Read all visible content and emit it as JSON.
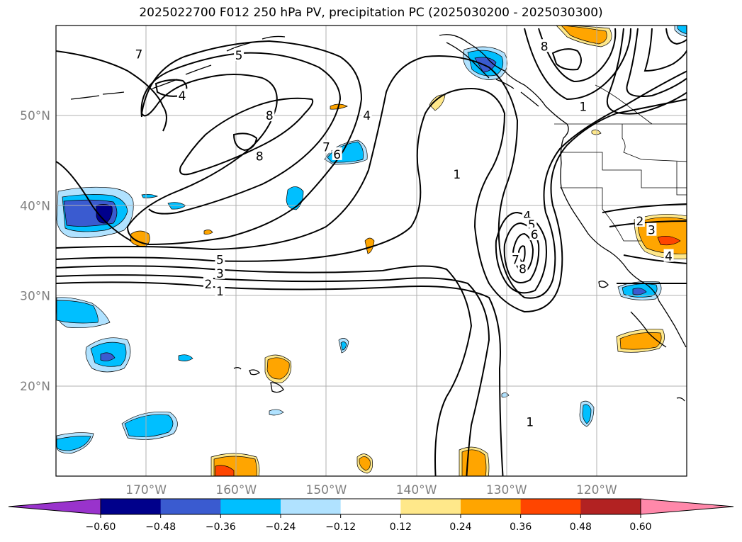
{
  "title": "2025022700 F012 250 hPa PV, precipitation PC (2025030200 - 2025030300)",
  "map": {
    "lon_range": [
      -180,
      -110
    ],
    "lat_range": [
      10,
      60
    ],
    "lat_ticks": [
      {
        "value": 50,
        "label": "50°N"
      },
      {
        "value": 40,
        "label": "40°N"
      },
      {
        "value": 30,
        "label": "30°N"
      },
      {
        "value": 20,
        "label": "20°N"
      }
    ],
    "lon_ticks": [
      {
        "value": -170,
        "label": "170°W"
      },
      {
        "value": -160,
        "label": "160°W"
      },
      {
        "value": -150,
        "label": "150°W"
      },
      {
        "value": -140,
        "label": "140°W"
      },
      {
        "value": -130,
        "label": "130°W"
      },
      {
        "value": -120,
        "label": "120°W"
      }
    ],
    "contour_labels": [
      {
        "text": "7",
        "lon": -170.8,
        "lat": 56.8
      },
      {
        "text": "5",
        "lon": -159.7,
        "lat": 56.7
      },
      {
        "text": "4",
        "lon": -166.0,
        "lat": 52.2
      },
      {
        "text": "8",
        "lon": -156.3,
        "lat": 50.0
      },
      {
        "text": "8",
        "lon": -157.4,
        "lat": 45.5
      },
      {
        "text": "7",
        "lon": -150.0,
        "lat": 46.5
      },
      {
        "text": "6",
        "lon": -148.8,
        "lat": 45.7
      },
      {
        "text": "4",
        "lon": -145.5,
        "lat": 50.0
      },
      {
        "text": "1",
        "lon": -135.5,
        "lat": 43.5
      },
      {
        "text": "8",
        "lon": -125.8,
        "lat": 57.7
      },
      {
        "text": "1",
        "lon": -121.5,
        "lat": 51.0
      },
      {
        "text": "4",
        "lon": -127.7,
        "lat": 38.9
      },
      {
        "text": "5",
        "lon": -127.2,
        "lat": 37.9
      },
      {
        "text": "6",
        "lon": -126.9,
        "lat": 36.8
      },
      {
        "text": "7",
        "lon": -129.0,
        "lat": 34.0
      },
      {
        "text": "8",
        "lon": -128.2,
        "lat": 33.0
      },
      {
        "text": "5",
        "lon": -161.8,
        "lat": 34.0
      },
      {
        "text": "3",
        "lon": -161.8,
        "lat": 32.5
      },
      {
        "text": "2",
        "lon": -163.1,
        "lat": 31.3
      },
      {
        "text": "1",
        "lon": -161.8,
        "lat": 30.5
      },
      {
        "text": "2",
        "lon": -115.2,
        "lat": 38.3
      },
      {
        "text": "3",
        "lon": -113.9,
        "lat": 37.3
      },
      {
        "text": "4",
        "lon": -112.0,
        "lat": 34.4
      },
      {
        "text": "1",
        "lon": -127.4,
        "lat": 16.0
      }
    ]
  },
  "colorbar": {
    "ticks": [
      "−0.60",
      "−0.48",
      "−0.36",
      "−0.24",
      "−0.12",
      "0.12",
      "0.24",
      "0.36",
      "0.48",
      "0.60"
    ],
    "colors": [
      "#9933cc",
      "#00008b",
      "#3a5bd0",
      "#00bfff",
      "#b0e2ff",
      "#ffffff",
      "#ffe88a",
      "#ffa500",
      "#ff4500",
      "#b22222",
      "#ff88aa"
    ]
  }
}
